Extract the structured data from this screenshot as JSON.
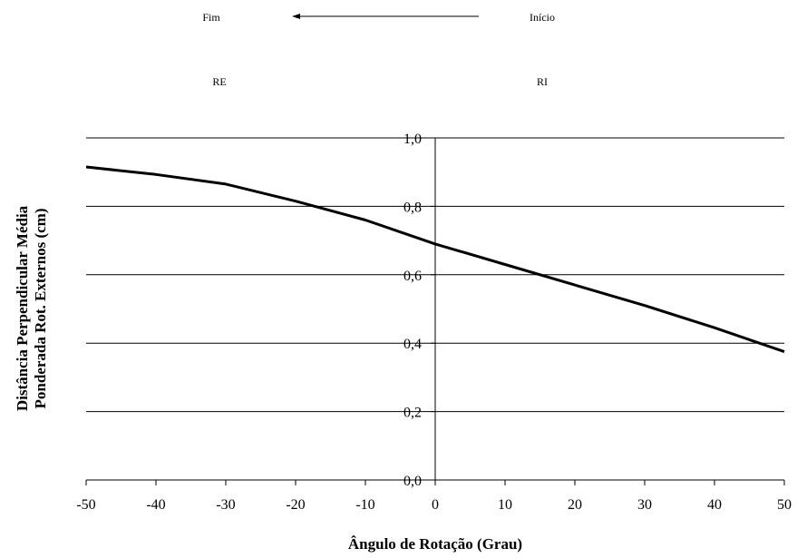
{
  "chart_data": {
    "type": "line",
    "title": "",
    "xlabel": "Ângulo de Rotação (Grau)",
    "ylabel_lines": [
      "Distância Perpendicular Média",
      "Ponderada Rot. Externos (cm)"
    ],
    "xlim": [
      -50,
      50
    ],
    "ylim": [
      0,
      1
    ],
    "x_ticks": [
      -50,
      -40,
      -30,
      -20,
      -10,
      0,
      10,
      20,
      30,
      40,
      50
    ],
    "x_tick_labels": [
      "-50",
      "-40",
      "-30",
      "-20",
      "-10",
      "0",
      "10",
      "20",
      "30",
      "40",
      "50"
    ],
    "y_ticks": [
      0,
      0.2,
      0.4,
      0.6,
      0.8,
      1.0
    ],
    "y_tick_labels": [
      "0,0",
      "0,2",
      "0,4",
      "0,6",
      "0,8",
      "1,0"
    ],
    "grid": "horizontal",
    "series": [
      {
        "x": [
          -50,
          -40,
          -30,
          -20,
          -10,
          0,
          10,
          20,
          30,
          40,
          50
        ],
        "y": [
          0.915,
          0.893,
          0.865,
          0.815,
          0.76,
          0.69,
          0.63,
          0.57,
          0.51,
          0.445,
          0.375
        ],
        "color": "#000000"
      }
    ],
    "annotations": {
      "fim": "Fim",
      "inicio": "Início",
      "re": "RE",
      "ri": "RI"
    }
  }
}
